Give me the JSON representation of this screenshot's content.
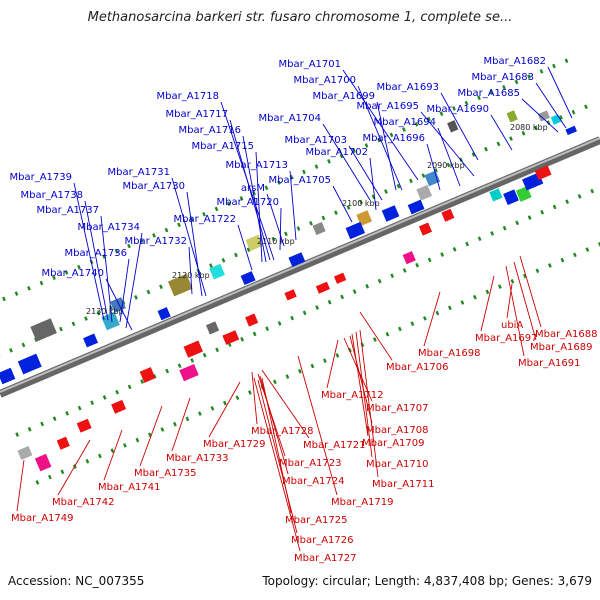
{
  "title": "Methanosarcina barkeri str. fusaro chromosome 1, complete se...",
  "footer": {
    "accession": "Accession: NC_007355",
    "summary": "Topology: circular; Length: 4,837,408 bp; Genes: 3,679"
  },
  "colors": {
    "forward_label": "#0000cc",
    "reverse_label": "#cc0000",
    "backbone": "#8a8a8a",
    "forward_gene": "#0022dd",
    "reverse_gene": "#ee1111",
    "tick": "#228822"
  },
  "scale_labels": [
    "2080 kbp",
    "2090 kbp",
    "2100 kbp",
    "2110 kbp",
    "2120 kbp",
    "2130 kbp"
  ],
  "forward_labels": [
    "Mbar_A1682",
    "Mbar_A1683",
    "Mbar_A1685",
    "Mbar_A1690",
    "Mbar_A1693",
    "Mbar_A1695",
    "Mbar_A1694",
    "Mbar_A1696",
    "Mbar_A1701",
    "Mbar_A1700",
    "Mbar_A1699",
    "Mbar_A1704",
    "Mbar_A1703",
    "Mbar_A1702",
    "Mbar_A1705",
    "Mbar_A1718",
    "Mbar_A1717",
    "Mbar_A1716",
    "Mbar_A1715",
    "Mbar_A1713",
    "arsM",
    "Mbar_A1720",
    "Mbar_A1722",
    "Mbar_A1731",
    "Mbar_A1730",
    "Mbar_A1732",
    "Mbar_A1739",
    "Mbar_A1738",
    "Mbar_A1737",
    "Mbar_A1734",
    "Mbar_A1736",
    "Mbar_A1740"
  ],
  "reverse_labels": [
    "ubiA",
    "Mbar_A1688",
    "Mbar_A1689",
    "Mbar_A1691",
    "Mbar_A1697",
    "Mbar_A1698",
    "Mbar_A1706",
    "Mbar_A1712",
    "Mbar_A1707",
    "Mbar_A1708",
    "Mbar_A1709",
    "Mbar_A1710",
    "Mbar_A1711",
    "Mbar_A1719",
    "Mbar_A1728",
    "Mbar_A1721",
    "Mbar_A1723",
    "Mbar_A1724",
    "Mbar_A1725",
    "Mbar_A1726",
    "Mbar_A1727",
    "Mbar_A1729",
    "Mbar_A1733",
    "Mbar_A1735",
    "Mbar_A1741",
    "Mbar_A1742",
    "Mbar_A1749"
  ]
}
